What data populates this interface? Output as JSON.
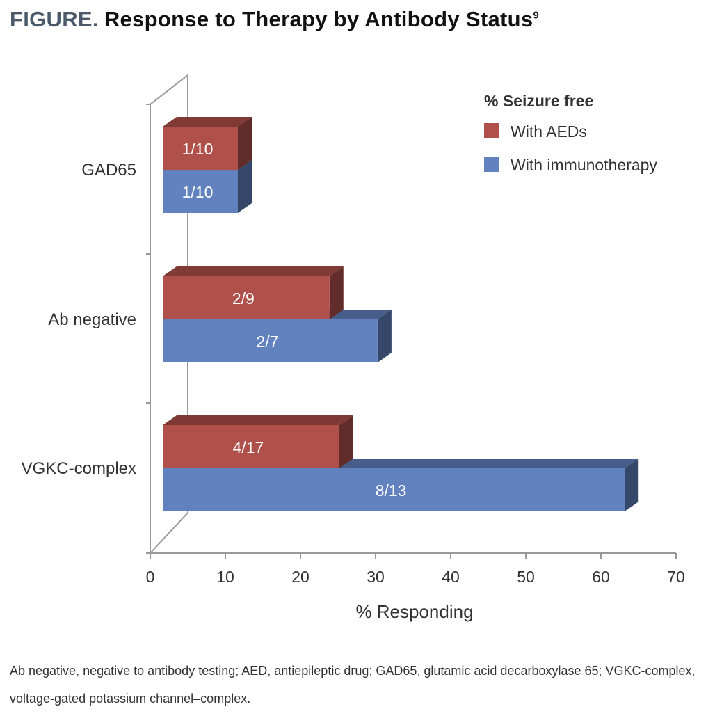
{
  "figure": {
    "label": "FIGURE.",
    "title": "Response to Therapy by Antibody Status",
    "ref": "9"
  },
  "caption": "Ab negative, negative to antibody testing; AED, antiepileptic drug; GAD65, glutamic acid decarboxylase 65; VGKC-complex, voltage-gated potassium channel–complex.",
  "chart_data": {
    "type": "bar",
    "orientation": "horizontal",
    "style": "3d",
    "title": "",
    "xlabel": "% Responding",
    "ylabel": "",
    "xlim": [
      0,
      70
    ],
    "xticks": [
      "0",
      "10",
      "20",
      "30",
      "40",
      "50",
      "60",
      "70"
    ],
    "categories": [
      "GAD65",
      "Ab negative",
      "VGKC-complex"
    ],
    "legend": {
      "title": "% Seizure free",
      "position": "top-right"
    },
    "series": [
      {
        "name": "With AEDs",
        "color": "#b0504b",
        "values": [
          10,
          22.2,
          23.5
        ],
        "labels": [
          "1/10",
          "2/9",
          "4/17"
        ]
      },
      {
        "name": "With immunotherapy",
        "color": "#6282bf",
        "values": [
          10,
          28.6,
          61.5
        ],
        "labels": [
          "1/10",
          "2/7",
          "8/13"
        ]
      }
    ]
  }
}
